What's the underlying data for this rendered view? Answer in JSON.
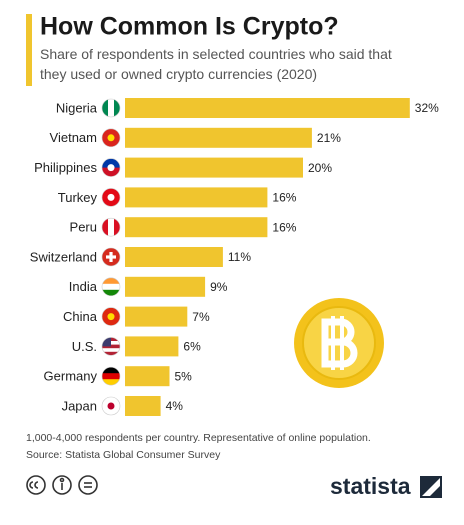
{
  "chart_data": {
    "type": "bar",
    "orientation": "horizontal",
    "title": "How Common Is Crypto?",
    "subtitle": "Share of respondents in selected countries who said that they used or owned crypto currencies (2020)",
    "categories": [
      "Nigeria",
      "Vietnam",
      "Philippines",
      "Turkey",
      "Peru",
      "Switzerland",
      "India",
      "China",
      "U.S.",
      "Germany",
      "Japan"
    ],
    "values": [
      32,
      21,
      20,
      16,
      16,
      11,
      9,
      7,
      6,
      5,
      4
    ],
    "value_labels": [
      "32%",
      "21%",
      "20%",
      "16%",
      "16%",
      "11%",
      "9%",
      "7%",
      "6%",
      "5%",
      "4%"
    ],
    "color": "#f0c52e",
    "note": "1,000-4,000 respondents per country. Representative of online population.",
    "source": "Source: Statista Global Consumer Survey",
    "logo": "statista"
  }
}
